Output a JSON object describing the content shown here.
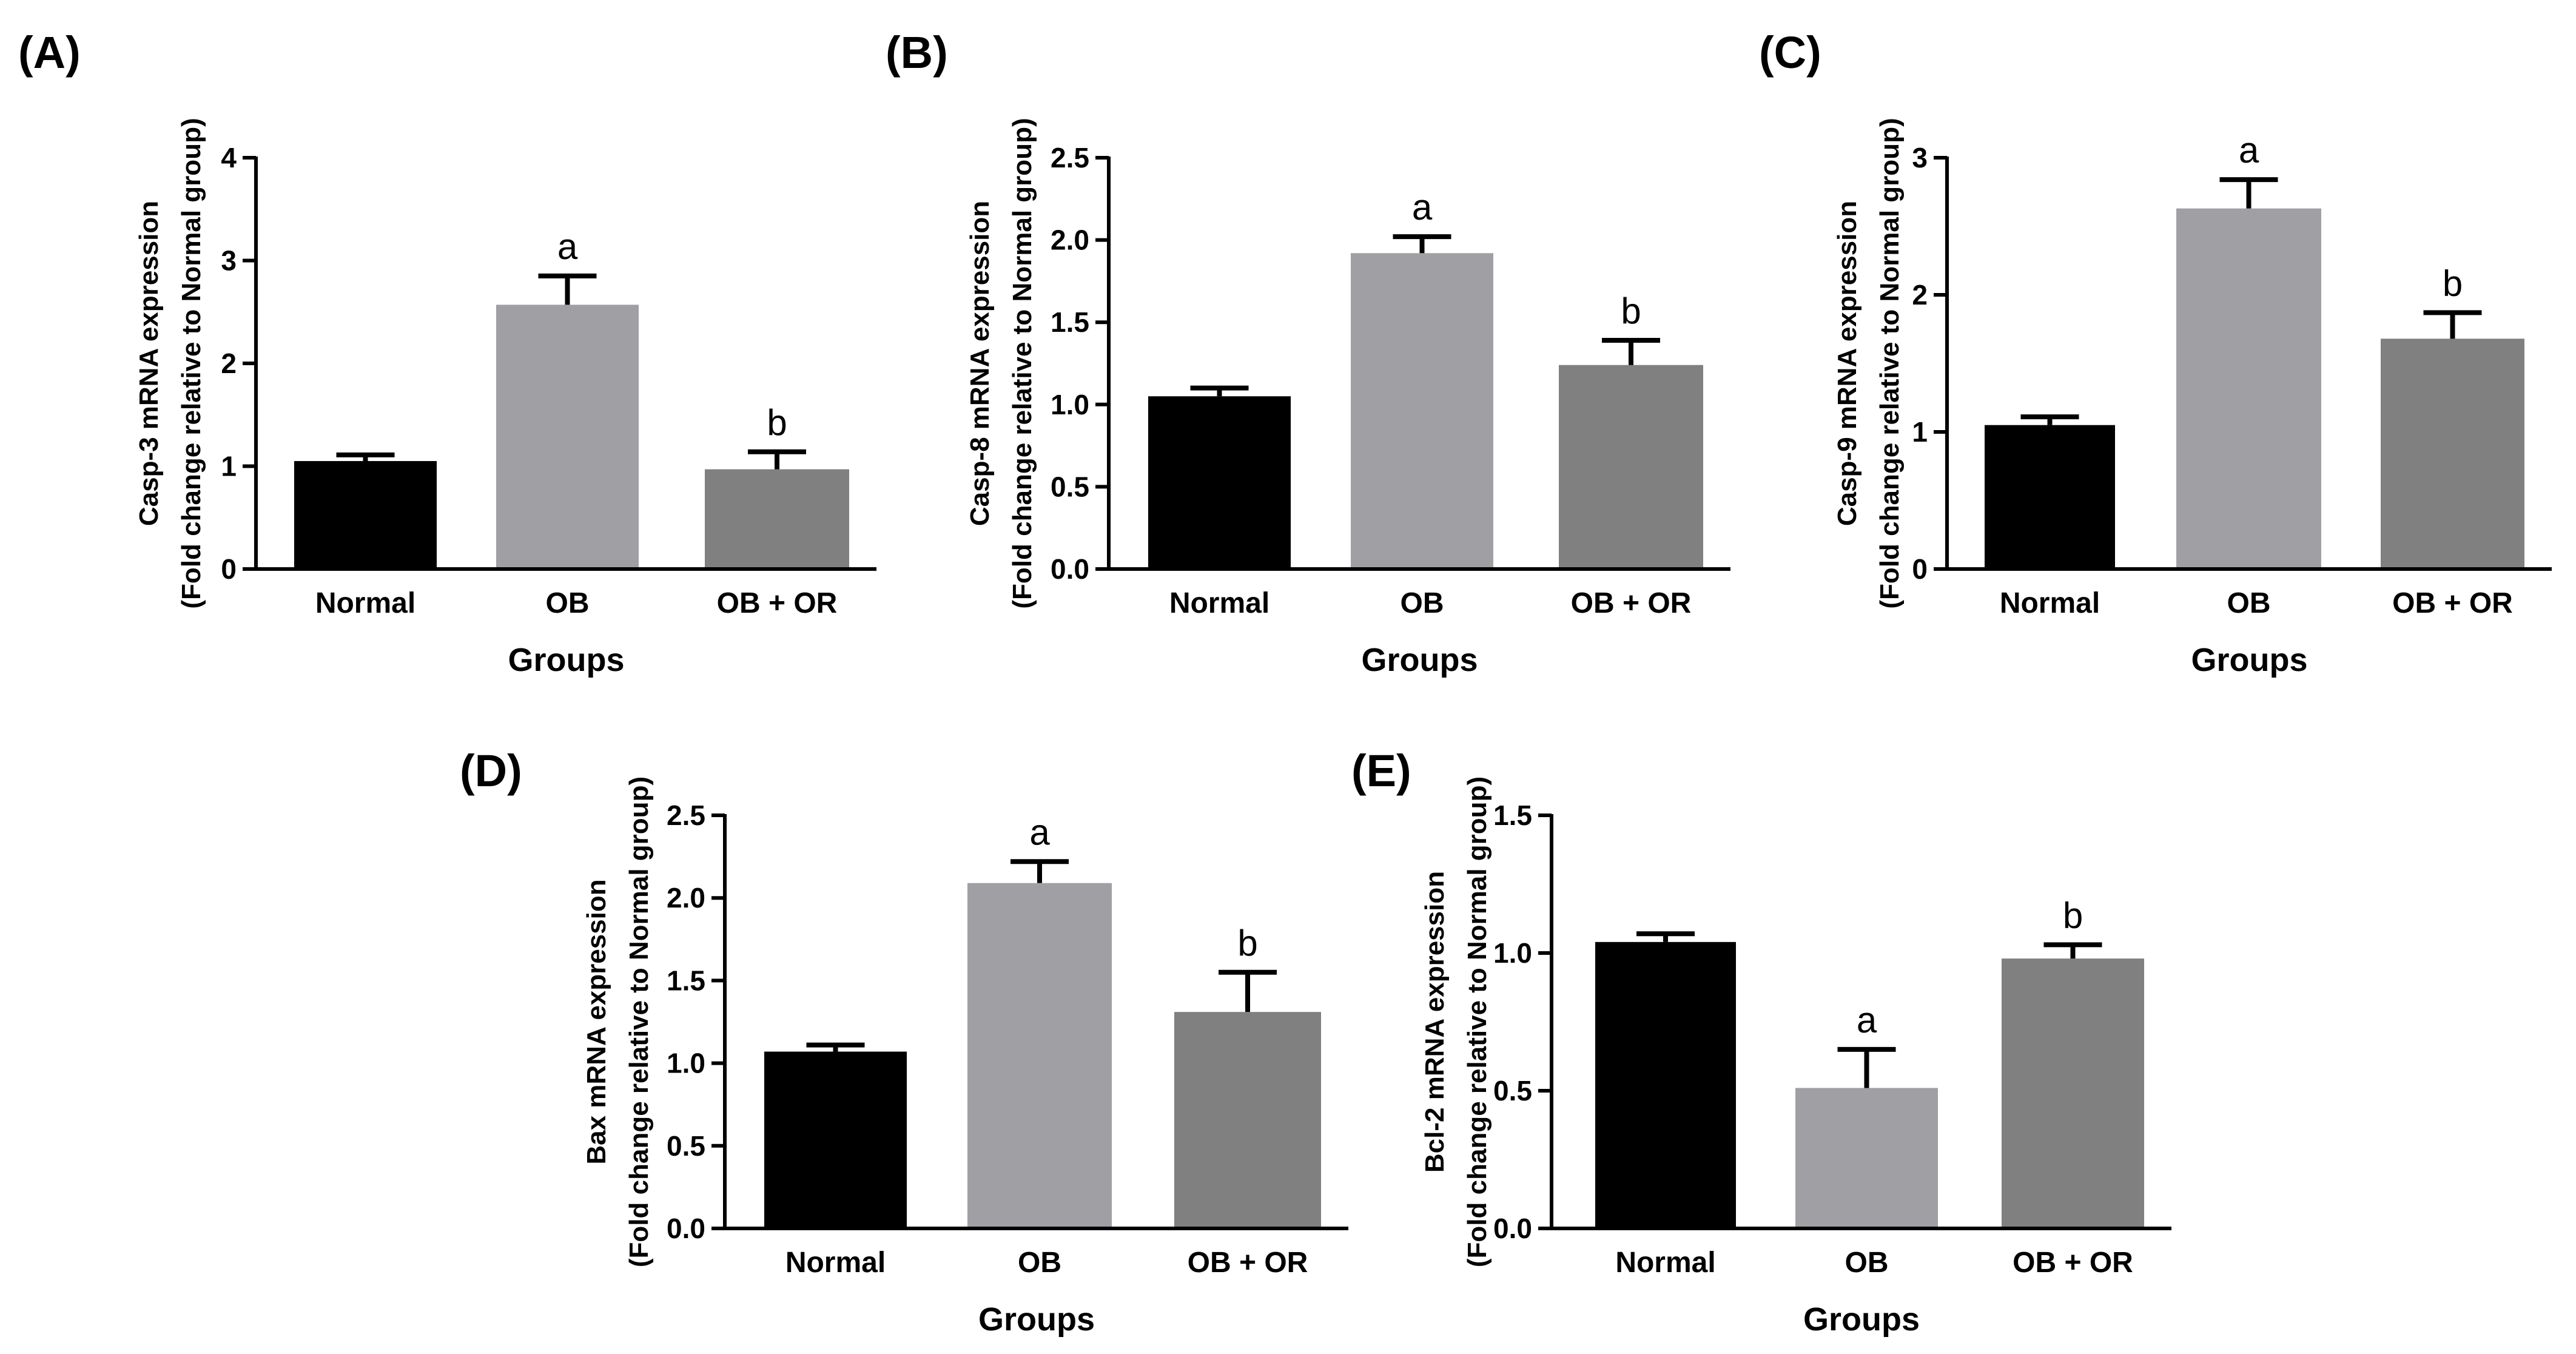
{
  "figure": {
    "bar_colors": [
      "#000000",
      "#a0a0a4",
      "#808080"
    ],
    "axis_color": "#000000"
  },
  "chart_data": [
    {
      "type": "bar",
      "panel": "(A)",
      "categories": [
        "Normal",
        "OB",
        "OB + OR"
      ],
      "values": [
        1.05,
        2.57,
        0.97
      ],
      "error_bars": [
        0.06,
        0.28,
        0.17
      ],
      "significance": [
        "",
        "a",
        "b"
      ],
      "xlabel": "Groups",
      "ylabel_line1": "Casp-3 mRNA expression",
      "ylabel_line2": "(Fold change relative to Normal group)",
      "ylim": [
        0,
        4
      ],
      "yticks": [
        0,
        1,
        2,
        3,
        4
      ],
      "ytick_labels": [
        "0",
        "1",
        "2",
        "3",
        "4"
      ],
      "grid": false,
      "legend": "none"
    },
    {
      "type": "bar",
      "panel": "(B)",
      "categories": [
        "Normal",
        "OB",
        "OB + OR"
      ],
      "values": [
        1.05,
        1.92,
        1.24
      ],
      "error_bars": [
        0.05,
        0.1,
        0.15
      ],
      "significance": [
        "",
        "a",
        "b"
      ],
      "xlabel": "Groups",
      "ylabel_line1": "Casp-8 mRNA expression",
      "ylabel_line2": "(Fold change relative to Normal group)",
      "ylim": [
        0,
        2.5
      ],
      "yticks": [
        0,
        0.5,
        1,
        1.5,
        2,
        2.5
      ],
      "ytick_labels": [
        "0.0",
        "0.5",
        "1.0",
        "1.5",
        "2.0",
        "2.5"
      ],
      "grid": false,
      "legend": "none"
    },
    {
      "type": "bar",
      "panel": "(C)",
      "categories": [
        "Normal",
        "OB",
        "OB + OR"
      ],
      "values": [
        1.05,
        2.63,
        1.68
      ],
      "error_bars": [
        0.06,
        0.21,
        0.19
      ],
      "significance": [
        "",
        "a",
        "b"
      ],
      "xlabel": "Groups",
      "ylabel_line1": "Casp-9 mRNA expression",
      "ylabel_line2": "(Fold change relative to Normal group)",
      "ylim": [
        0,
        3
      ],
      "yticks": [
        0,
        1,
        2,
        3
      ],
      "ytick_labels": [
        "0",
        "1",
        "2",
        "3"
      ],
      "grid": false,
      "legend": "none"
    },
    {
      "type": "bar",
      "panel": "(D)",
      "categories": [
        "Normal",
        "OB",
        "OB + OR"
      ],
      "values": [
        1.07,
        2.09,
        1.31
      ],
      "error_bars": [
        0.04,
        0.13,
        0.24
      ],
      "significance": [
        "",
        "a",
        "b"
      ],
      "xlabel": "Groups",
      "ylabel_line1": "Bax mRNA expression",
      "ylabel_line2": "(Fold change relative to Normal group)",
      "ylim": [
        0,
        2.5
      ],
      "yticks": [
        0,
        0.5,
        1,
        1.5,
        2,
        2.5
      ],
      "ytick_labels": [
        "0.0",
        "0.5",
        "1.0",
        "1.5",
        "2.0",
        "2.5"
      ],
      "grid": false,
      "legend": "none"
    },
    {
      "type": "bar",
      "panel": "(E)",
      "categories": [
        "Normal",
        "OB",
        "OB + OR"
      ],
      "values": [
        1.04,
        0.51,
        0.98
      ],
      "error_bars": [
        0.03,
        0.14,
        0.05
      ],
      "significance": [
        "",
        "a",
        "b"
      ],
      "xlabel": "Groups",
      "ylabel_line1": "Bcl-2 mRNA expression",
      "ylabel_line2": "(Fold change relative to Normal group)",
      "ylim": [
        0,
        1.5
      ],
      "yticks": [
        0,
        0.5,
        1,
        1.5
      ],
      "ytick_labels": [
        "0.0",
        "0.5",
        "1.0",
        "1.5"
      ],
      "grid": false,
      "legend": "none"
    }
  ]
}
